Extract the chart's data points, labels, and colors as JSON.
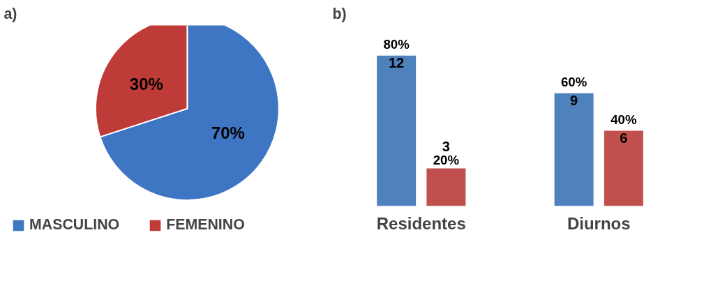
{
  "chart_data": [
    {
      "type": "pie",
      "title": "a)",
      "categories": [
        "MASCULINO",
        "FEMENINO"
      ],
      "values": [
        70,
        30
      ],
      "colors": [
        "#3f76c4",
        "#be3b38"
      ],
      "value_labels": [
        "70%",
        "30%"
      ],
      "legend": "bottom"
    },
    {
      "type": "bar",
      "title": "b)",
      "categories": [
        "Residentes",
        "Diurnos"
      ],
      "series": [
        {
          "color": "#4f81bd",
          "values": [
            12,
            9
          ]
        },
        {
          "color": "#c0504d",
          "values": [
            3,
            6
          ]
        }
      ],
      "annotations": [
        "80%",
        "20%",
        "60%",
        "40%"
      ],
      "tick_labels": "x",
      "data_labels": true
    }
  ]
}
